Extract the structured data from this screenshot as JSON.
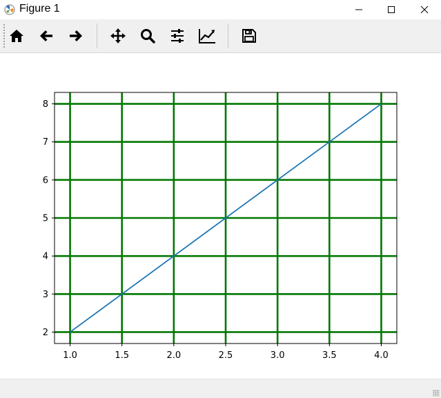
{
  "window": {
    "title": "Figure 1",
    "controls": [
      "minimize-icon",
      "maximize-icon",
      "close-icon"
    ]
  },
  "toolbar": {
    "tools": [
      {
        "name": "home-icon"
      },
      {
        "name": "back-arrow-icon"
      },
      {
        "name": "forward-arrow-icon"
      },
      {
        "name": "pan-move-icon"
      },
      {
        "name": "zoom-magnifier-icon"
      },
      {
        "name": "configure-subplots-icon"
      },
      {
        "name": "edit-axis-line-icon"
      },
      {
        "name": "save-floppy-icon"
      }
    ]
  },
  "colors": {
    "line": "#1f77b4",
    "grid": "#007700",
    "toolbar_bg": "#f0f0f0"
  },
  "chart_data": {
    "type": "line",
    "x": [
      1.0,
      2.0,
      3.0,
      4.0
    ],
    "series": [
      {
        "values": [
          2,
          4,
          6,
          8
        ]
      }
    ],
    "xlim": [
      0.85,
      4.15
    ],
    "ylim": [
      1.7,
      8.3
    ],
    "xticks": [
      "1.0",
      "1.5",
      "2.0",
      "2.5",
      "3.0",
      "3.5",
      "4.0"
    ],
    "yticks": [
      "2",
      "3",
      "4",
      "5",
      "6",
      "7",
      "8"
    ],
    "grid": true,
    "title": "",
    "xlabel": "",
    "ylabel": ""
  }
}
